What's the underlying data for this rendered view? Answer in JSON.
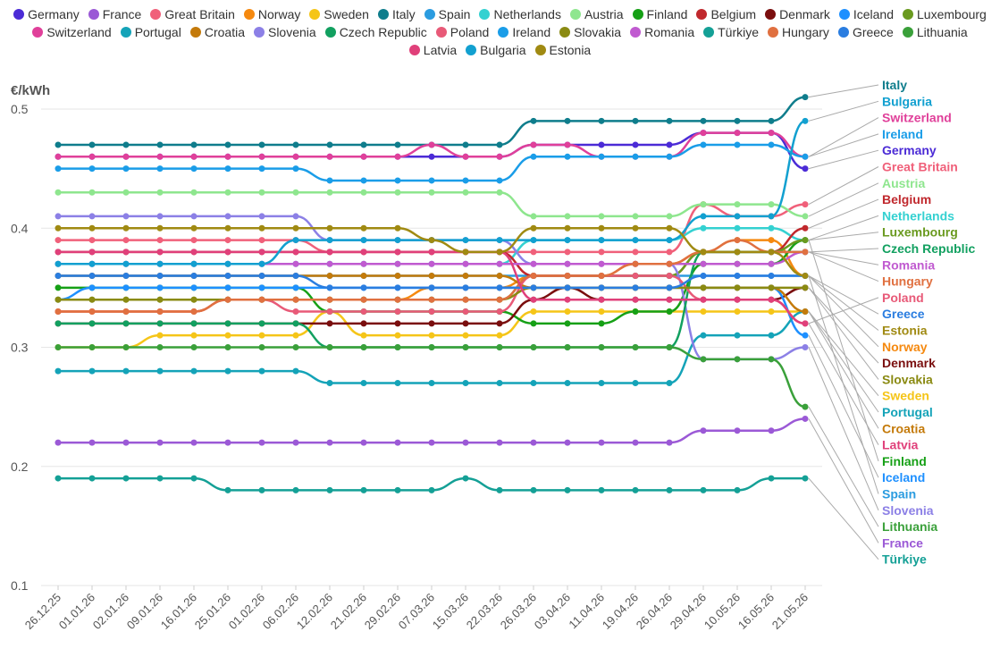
{
  "chart_data": {
    "type": "line",
    "title": "",
    "ylabel": "€/kWh",
    "xlabel": "",
    "ylim": [
      0.1,
      0.5
    ],
    "yticks": [
      0.1,
      0.2,
      0.3,
      0.4,
      0.5
    ],
    "ytick_labels": [
      "0.1",
      "0.2",
      "0.3",
      "0.4",
      "0.5"
    ],
    "grid": true,
    "legend_position": "top",
    "categories": [
      "26.12.25",
      "01.01.26",
      "02.01.26",
      "09.01.26",
      "16.01.26",
      "25.01.26",
      "01.02.26",
      "06.02.26",
      "12.02.26",
      "21.02.26",
      "29.02.26",
      "07.03.26",
      "15.03.26",
      "22.03.26",
      "26.03.26",
      "03.04.26",
      "11.04.26",
      "19.04.26",
      "26.04.26",
      "29.04.26",
      "10.05.26",
      "16.05.26",
      "21.05.26"
    ],
    "series": [
      {
        "name": "Germany",
        "color": "#4b2bd6",
        "values": [
          0.46,
          0.46,
          0.46,
          0.46,
          0.46,
          0.46,
          0.46,
          0.46,
          0.46,
          0.46,
          0.46,
          0.46,
          0.46,
          0.46,
          0.47,
          0.47,
          0.47,
          0.47,
          0.47,
          0.48,
          0.48,
          0.48,
          0.45
        ]
      },
      {
        "name": "France",
        "color": "#9b59d6",
        "values": [
          0.22,
          0.22,
          0.22,
          0.22,
          0.22,
          0.22,
          0.22,
          0.22,
          0.22,
          0.22,
          0.22,
          0.22,
          0.22,
          0.22,
          0.22,
          0.22,
          0.22,
          0.22,
          0.22,
          0.23,
          0.23,
          0.23,
          0.24
        ]
      },
      {
        "name": "Great Britain",
        "color": "#f0607a",
        "values": [
          0.39,
          0.39,
          0.39,
          0.39,
          0.39,
          0.39,
          0.39,
          0.39,
          0.38,
          0.38,
          0.38,
          0.38,
          0.38,
          0.38,
          0.38,
          0.38,
          0.38,
          0.38,
          0.38,
          0.42,
          0.41,
          0.41,
          0.42
        ]
      },
      {
        "name": "Norway",
        "color": "#f5890f",
        "values": [
          0.33,
          0.33,
          0.33,
          0.33,
          0.33,
          0.34,
          0.34,
          0.34,
          0.34,
          0.34,
          0.34,
          0.35,
          0.35,
          0.35,
          0.36,
          0.36,
          0.36,
          0.37,
          0.37,
          0.38,
          0.39,
          0.39,
          0.36
        ]
      },
      {
        "name": "Sweden",
        "color": "#f5c518",
        "values": [
          0.3,
          0.3,
          0.3,
          0.31,
          0.31,
          0.31,
          0.31,
          0.31,
          0.33,
          0.31,
          0.31,
          0.31,
          0.31,
          0.31,
          0.33,
          0.33,
          0.33,
          0.33,
          0.33,
          0.33,
          0.33,
          0.33,
          0.33
        ]
      },
      {
        "name": "Italy",
        "color": "#0f7d8c",
        "values": [
          0.47,
          0.47,
          0.47,
          0.47,
          0.47,
          0.47,
          0.47,
          0.47,
          0.47,
          0.47,
          0.47,
          0.47,
          0.47,
          0.47,
          0.49,
          0.49,
          0.49,
          0.49,
          0.49,
          0.49,
          0.49,
          0.49,
          0.51
        ]
      },
      {
        "name": "Spain",
        "color": "#2b9ce0",
        "values": [
          0.36,
          0.36,
          0.36,
          0.36,
          0.36,
          0.36,
          0.36,
          0.36,
          0.36,
          0.36,
          0.36,
          0.36,
          0.36,
          0.36,
          0.36,
          0.36,
          0.36,
          0.36,
          0.36,
          0.36,
          0.36,
          0.36,
          0.36
        ]
      },
      {
        "name": "Netherlands",
        "color": "#34d1d1",
        "values": [
          0.37,
          0.37,
          0.37,
          0.37,
          0.37,
          0.37,
          0.37,
          0.37,
          0.37,
          0.37,
          0.37,
          0.37,
          0.37,
          0.37,
          0.39,
          0.39,
          0.39,
          0.39,
          0.39,
          0.4,
          0.4,
          0.4,
          0.39
        ]
      },
      {
        "name": "Austria",
        "color": "#8ee68e",
        "values": [
          0.43,
          0.43,
          0.43,
          0.43,
          0.43,
          0.43,
          0.43,
          0.43,
          0.43,
          0.43,
          0.43,
          0.43,
          0.43,
          0.43,
          0.41,
          0.41,
          0.41,
          0.41,
          0.41,
          0.42,
          0.42,
          0.42,
          0.41
        ]
      },
      {
        "name": "Finland",
        "color": "#16a016",
        "values": [
          0.35,
          0.35,
          0.35,
          0.35,
          0.35,
          0.35,
          0.35,
          0.35,
          0.33,
          0.33,
          0.33,
          0.33,
          0.33,
          0.33,
          0.32,
          0.32,
          0.32,
          0.33,
          0.33,
          0.37,
          0.37,
          0.37,
          0.39
        ]
      },
      {
        "name": "Belgium",
        "color": "#c0282d",
        "values": [
          0.38,
          0.38,
          0.38,
          0.38,
          0.38,
          0.38,
          0.38,
          0.38,
          0.38,
          0.38,
          0.38,
          0.38,
          0.38,
          0.38,
          0.36,
          0.36,
          0.36,
          0.36,
          0.36,
          0.38,
          0.38,
          0.38,
          0.4
        ]
      },
      {
        "name": "Denmark",
        "color": "#7a0e0e",
        "values": [
          0.32,
          0.32,
          0.32,
          0.32,
          0.32,
          0.32,
          0.32,
          0.32,
          0.32,
          0.32,
          0.32,
          0.32,
          0.32,
          0.32,
          0.34,
          0.35,
          0.34,
          0.34,
          0.34,
          0.34,
          0.34,
          0.34,
          0.35
        ]
      },
      {
        "name": "Iceland",
        "color": "#1e90ff",
        "values": [
          0.34,
          0.35,
          0.35,
          0.35,
          0.35,
          0.35,
          0.35,
          0.35,
          0.35,
          0.35,
          0.35,
          0.35,
          0.35,
          0.35,
          0.35,
          0.35,
          0.35,
          0.35,
          0.35,
          0.35,
          0.35,
          0.35,
          0.31
        ]
      },
      {
        "name": "Luxembourg",
        "color": "#6a9a1f",
        "values": [
          0.34,
          0.34,
          0.34,
          0.34,
          0.34,
          0.34,
          0.34,
          0.34,
          0.34,
          0.34,
          0.34,
          0.34,
          0.34,
          0.34,
          0.36,
          0.36,
          0.36,
          0.36,
          0.36,
          0.38,
          0.38,
          0.38,
          0.39
        ]
      },
      {
        "name": "Switzerland",
        "color": "#e0409a",
        "values": [
          0.46,
          0.46,
          0.46,
          0.46,
          0.46,
          0.46,
          0.46,
          0.46,
          0.46,
          0.46,
          0.46,
          0.47,
          0.46,
          0.46,
          0.47,
          0.47,
          0.46,
          0.46,
          0.46,
          0.48,
          0.48,
          0.48,
          0.46
        ]
      },
      {
        "name": "Portugal",
        "color": "#14a3b8",
        "values": [
          0.28,
          0.28,
          0.28,
          0.28,
          0.28,
          0.28,
          0.28,
          0.28,
          0.27,
          0.27,
          0.27,
          0.27,
          0.27,
          0.27,
          0.27,
          0.27,
          0.27,
          0.27,
          0.27,
          0.31,
          0.31,
          0.31,
          0.33
        ]
      },
      {
        "name": "Croatia",
        "color": "#c47a0a",
        "values": [
          0.36,
          0.36,
          0.36,
          0.36,
          0.36,
          0.36,
          0.36,
          0.36,
          0.36,
          0.36,
          0.36,
          0.36,
          0.36,
          0.36,
          0.35,
          0.35,
          0.35,
          0.35,
          0.35,
          0.35,
          0.35,
          0.35,
          0.33
        ]
      },
      {
        "name": "Slovenia",
        "color": "#8c80e6",
        "values": [
          0.41,
          0.41,
          0.41,
          0.41,
          0.41,
          0.41,
          0.41,
          0.41,
          0.39,
          0.39,
          0.39,
          0.39,
          0.39,
          0.39,
          0.37,
          0.37,
          0.37,
          0.37,
          0.37,
          0.29,
          0.29,
          0.29,
          0.3
        ]
      },
      {
        "name": "Czech Republic",
        "color": "#12a060",
        "values": [
          0.32,
          0.32,
          0.32,
          0.32,
          0.32,
          0.32,
          0.32,
          0.32,
          0.3,
          0.3,
          0.3,
          0.3,
          0.3,
          0.3,
          0.3,
          0.3,
          0.3,
          0.3,
          0.3,
          0.38,
          0.38,
          0.38,
          0.38
        ]
      },
      {
        "name": "Poland",
        "color": "#e85a78",
        "values": [
          0.33,
          0.33,
          0.33,
          0.33,
          0.33,
          0.34,
          0.34,
          0.33,
          0.33,
          0.33,
          0.33,
          0.33,
          0.33,
          0.33,
          0.36,
          0.36,
          0.36,
          0.36,
          0.36,
          0.34,
          0.34,
          0.34,
          0.32
        ]
      },
      {
        "name": "Ireland",
        "color": "#1a9de8",
        "values": [
          0.45,
          0.45,
          0.45,
          0.45,
          0.45,
          0.45,
          0.45,
          0.45,
          0.44,
          0.44,
          0.44,
          0.44,
          0.44,
          0.44,
          0.46,
          0.46,
          0.46,
          0.46,
          0.46,
          0.47,
          0.47,
          0.47,
          0.46
        ]
      },
      {
        "name": "Slovakia",
        "color": "#8a8a12",
        "values": [
          0.34,
          0.34,
          0.34,
          0.34,
          0.34,
          0.34,
          0.34,
          0.34,
          0.34,
          0.34,
          0.34,
          0.34,
          0.34,
          0.34,
          0.35,
          0.35,
          0.35,
          0.35,
          0.35,
          0.35,
          0.35,
          0.35,
          0.35
        ]
      },
      {
        "name": "Romania",
        "color": "#c05ad0",
        "values": [
          0.37,
          0.37,
          0.37,
          0.37,
          0.37,
          0.37,
          0.37,
          0.37,
          0.37,
          0.37,
          0.37,
          0.37,
          0.37,
          0.37,
          0.37,
          0.37,
          0.37,
          0.37,
          0.37,
          0.37,
          0.37,
          0.37,
          0.38
        ]
      },
      {
        "name": "Türkiye",
        "color": "#14a096",
        "values": [
          0.19,
          0.19,
          0.19,
          0.19,
          0.19,
          0.18,
          0.18,
          0.18,
          0.18,
          0.18,
          0.18,
          0.18,
          0.19,
          0.18,
          0.18,
          0.18,
          0.18,
          0.18,
          0.18,
          0.18,
          0.18,
          0.19,
          0.19
        ]
      },
      {
        "name": "Hungary",
        "color": "#e07040",
        "values": [
          0.33,
          0.33,
          0.33,
          0.33,
          0.33,
          0.34,
          0.34,
          0.34,
          0.34,
          0.34,
          0.34,
          0.34,
          0.34,
          0.34,
          0.36,
          0.36,
          0.36,
          0.37,
          0.37,
          0.38,
          0.39,
          0.38,
          0.38
        ]
      },
      {
        "name": "Greece",
        "color": "#2a7de0",
        "values": [
          0.36,
          0.36,
          0.36,
          0.36,
          0.36,
          0.36,
          0.36,
          0.36,
          0.35,
          0.35,
          0.35,
          0.35,
          0.35,
          0.35,
          0.35,
          0.35,
          0.35,
          0.35,
          0.35,
          0.36,
          0.36,
          0.36,
          0.36
        ]
      },
      {
        "name": "Lithuania",
        "color": "#3aa03a",
        "values": [
          0.3,
          0.3,
          0.3,
          0.3,
          0.3,
          0.3,
          0.3,
          0.3,
          0.3,
          0.3,
          0.3,
          0.3,
          0.3,
          0.3,
          0.3,
          0.3,
          0.3,
          0.3,
          0.3,
          0.29,
          0.29,
          0.29,
          0.25
        ]
      },
      {
        "name": "Latvia",
        "color": "#e0407a",
        "values": [
          0.38,
          0.38,
          0.38,
          0.38,
          0.38,
          0.38,
          0.38,
          0.38,
          0.38,
          0.38,
          0.38,
          0.38,
          0.38,
          0.38,
          0.34,
          0.34,
          0.34,
          0.34,
          0.34,
          0.34,
          0.34,
          0.34,
          0.32
        ]
      },
      {
        "name": "Bulgaria",
        "color": "#12a0d0",
        "values": [
          0.37,
          0.37,
          0.37,
          0.37,
          0.37,
          0.37,
          0.37,
          0.39,
          0.39,
          0.39,
          0.39,
          0.39,
          0.39,
          0.39,
          0.39,
          0.39,
          0.39,
          0.39,
          0.39,
          0.41,
          0.41,
          0.41,
          0.49
        ]
      },
      {
        "name": "Estonia",
        "color": "#a08a12",
        "values": [
          0.4,
          0.4,
          0.4,
          0.4,
          0.4,
          0.4,
          0.4,
          0.4,
          0.4,
          0.4,
          0.4,
          0.39,
          0.38,
          0.38,
          0.4,
          0.4,
          0.4,
          0.4,
          0.4,
          0.38,
          0.38,
          0.38,
          0.36
        ]
      }
    ],
    "end_labels": [
      "Italy",
      "Bulgaria",
      "Switzerland",
      "Ireland",
      "Germany",
      "Great Britain",
      "Austria",
      "Belgium",
      "Netherlands",
      "Luxembourg",
      "Czech Republic",
      "Romania",
      "Hungary",
      "Poland",
      "Greece",
      "Estonia",
      "Norway",
      "Denmark",
      "Slovakia",
      "Sweden",
      "Portugal",
      "Croatia",
      "Latvia",
      "Finland",
      "Iceland",
      "Spain",
      "Slovenia",
      "Lithuania",
      "France",
      "Türkiye"
    ]
  }
}
